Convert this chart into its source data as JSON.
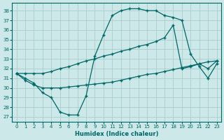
{
  "xlabel": "Humidex (Indice chaleur)",
  "bg_color": "#cce8e8",
  "grid_color": "#aacccc",
  "line_color": "#006666",
  "xlim": [
    -0.5,
    23.5
  ],
  "ylim": [
    26.5,
    38.8
  ],
  "yticks": [
    27,
    28,
    29,
    30,
    31,
    32,
    33,
    34,
    35,
    36,
    37,
    38
  ],
  "xticks": [
    0,
    1,
    2,
    3,
    4,
    5,
    6,
    7,
    8,
    9,
    10,
    11,
    12,
    13,
    14,
    15,
    16,
    17,
    18,
    19,
    20,
    21,
    22,
    23
  ],
  "line1_x": [
    0,
    1,
    2,
    3,
    4,
    5,
    6,
    7,
    8,
    9,
    10,
    11,
    12,
    13,
    14,
    15,
    16,
    17,
    18,
    19,
    20,
    21,
    22,
    23
  ],
  "line1_y": [
    31.5,
    30.8,
    30.3,
    30.0,
    30.0,
    30.0,
    30.1,
    30.2,
    30.3,
    30.4,
    30.5,
    30.6,
    30.8,
    31.0,
    31.2,
    31.4,
    31.5,
    31.7,
    31.9,
    32.1,
    32.3,
    32.5,
    32.7,
    32.8
  ],
  "line2_x": [
    0,
    1,
    2,
    3,
    4,
    5,
    6,
    7,
    8,
    9,
    10,
    11,
    12,
    13,
    14,
    15,
    16,
    17,
    18,
    19,
    20,
    21,
    22,
    23
  ],
  "line2_y": [
    31.5,
    31.5,
    31.5,
    31.5,
    31.7,
    32.0,
    32.2,
    32.5,
    32.8,
    33.0,
    33.3,
    33.5,
    33.8,
    34.0,
    34.3,
    34.5,
    34.8,
    35.2,
    36.5,
    32.0,
    32.2,
    32.5,
    32.0,
    32.8
  ],
  "line3_x": [
    0,
    1,
    2,
    3,
    4,
    5,
    6,
    7,
    8,
    9,
    10,
    11,
    12,
    13,
    14,
    15,
    16,
    17,
    18,
    19,
    20,
    21,
    22,
    23
  ],
  "line3_y": [
    31.5,
    31.0,
    30.5,
    29.5,
    29.0,
    27.5,
    27.2,
    27.2,
    29.2,
    33.3,
    35.5,
    37.5,
    38.0,
    38.2,
    38.2,
    38.0,
    38.0,
    37.5,
    37.3,
    37.0,
    33.5,
    32.2,
    31.0,
    32.5
  ]
}
